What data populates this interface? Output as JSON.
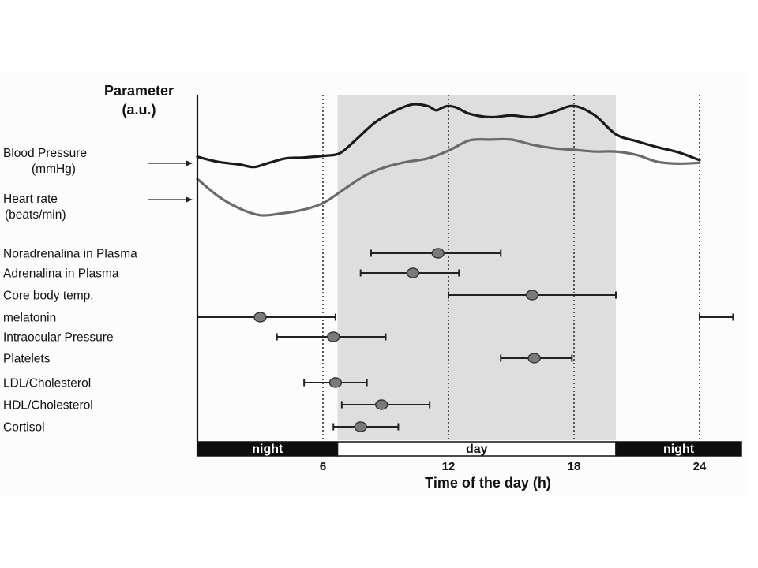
{
  "chart_data": {
    "type": "line",
    "ylabel_line1": "Parameter",
    "ylabel_line2": "(a.u.)",
    "xlabel": "Time of the day (h)",
    "xlim": [
      0,
      26
    ],
    "x_ticks": [
      6,
      12,
      18,
      24
    ],
    "x_tick_labels": [
      "6",
      "12",
      "18",
      "24"
    ],
    "day_shading": [
      6.7,
      20.0
    ],
    "dotted_lines": [
      6,
      12,
      18,
      24
    ],
    "light_dark_band": [
      {
        "label": "night",
        "start": 0,
        "end": 6.7
      },
      {
        "label": "day",
        "start": 6.7,
        "end": 20.0
      },
      {
        "label": "night",
        "start": 20.0,
        "end": 26
      }
    ],
    "series": [
      {
        "name": "Blood Pressure",
        "label_lines": [
          "Blood Pressure",
          "(mmHg)"
        ],
        "color": "#1a1a1a",
        "x": [
          0,
          1,
          2,
          2.7,
          3.3,
          4.2,
          5,
          6,
          6.8,
          7.5,
          8.5,
          9.5,
          10.3,
          11,
          11.4,
          11.7,
          12,
          12.4,
          13,
          14,
          15,
          16,
          17,
          18,
          19,
          20,
          21,
          22,
          23,
          24
        ],
        "y": [
          0.63,
          0.6,
          0.585,
          0.57,
          0.59,
          0.62,
          0.625,
          0.635,
          0.65,
          0.72,
          0.83,
          0.9,
          0.935,
          0.925,
          0.9,
          0.915,
          0.925,
          0.915,
          0.88,
          0.86,
          0.87,
          0.86,
          0.89,
          0.925,
          0.87,
          0.76,
          0.72,
          0.685,
          0.655,
          0.61
        ]
      },
      {
        "name": "Heart rate",
        "label_lines": [
          "Heart rate",
          "(beats/min)"
        ],
        "color": "#6b6b6b",
        "x": [
          0,
          1,
          2,
          3,
          4,
          5,
          6,
          7,
          8,
          9,
          10,
          11,
          12,
          13,
          14,
          15,
          16,
          17,
          18,
          19,
          20,
          21,
          22,
          23,
          24
        ],
        "y": [
          0.5,
          0.4,
          0.33,
          0.29,
          0.3,
          0.32,
          0.36,
          0.44,
          0.52,
          0.57,
          0.6,
          0.62,
          0.665,
          0.725,
          0.73,
          0.73,
          0.7,
          0.68,
          0.67,
          0.66,
          0.66,
          0.64,
          0.6,
          0.59,
          0.595
        ]
      }
    ],
    "peak_intervals": [
      {
        "label": "Noradrenalina in Plasma",
        "peak": 11.5,
        "low": 8.3,
        "high": 14.5
      },
      {
        "label": "Adrenalina in Plasma",
        "peak": 10.3,
        "low": 7.8,
        "high": 12.5
      },
      {
        "label": "Core body temp.",
        "peak": 16.0,
        "low": 12.0,
        "high": 20.0
      },
      {
        "label": "melatonin",
        "peak": 3.0,
        "low": 0.0,
        "high": 6.6,
        "wrap_low": 24.0,
        "wrap_high": 25.6
      },
      {
        "label": "Intraocular Pressure",
        "peak": 6.5,
        "low": 3.8,
        "high": 9.0
      },
      {
        "label": "Platelets",
        "peak": 16.1,
        "low": 14.5,
        "high": 17.9
      },
      {
        "label": "LDL/Cholesterol",
        "peak": 6.6,
        "low": 5.1,
        "high": 8.1
      },
      {
        "label": "HDL/Cholesterol",
        "peak": 8.8,
        "low": 6.9,
        "high": 11.1
      },
      {
        "label": "Cortisol",
        "peak": 7.8,
        "low": 6.5,
        "high": 9.6
      }
    ],
    "colors": {
      "day_shading": "#dedede",
      "band_dark": "#0d0d0d",
      "band_light": "#ffffff",
      "marker": "#7a7a7a",
      "axis": "#111111"
    }
  }
}
